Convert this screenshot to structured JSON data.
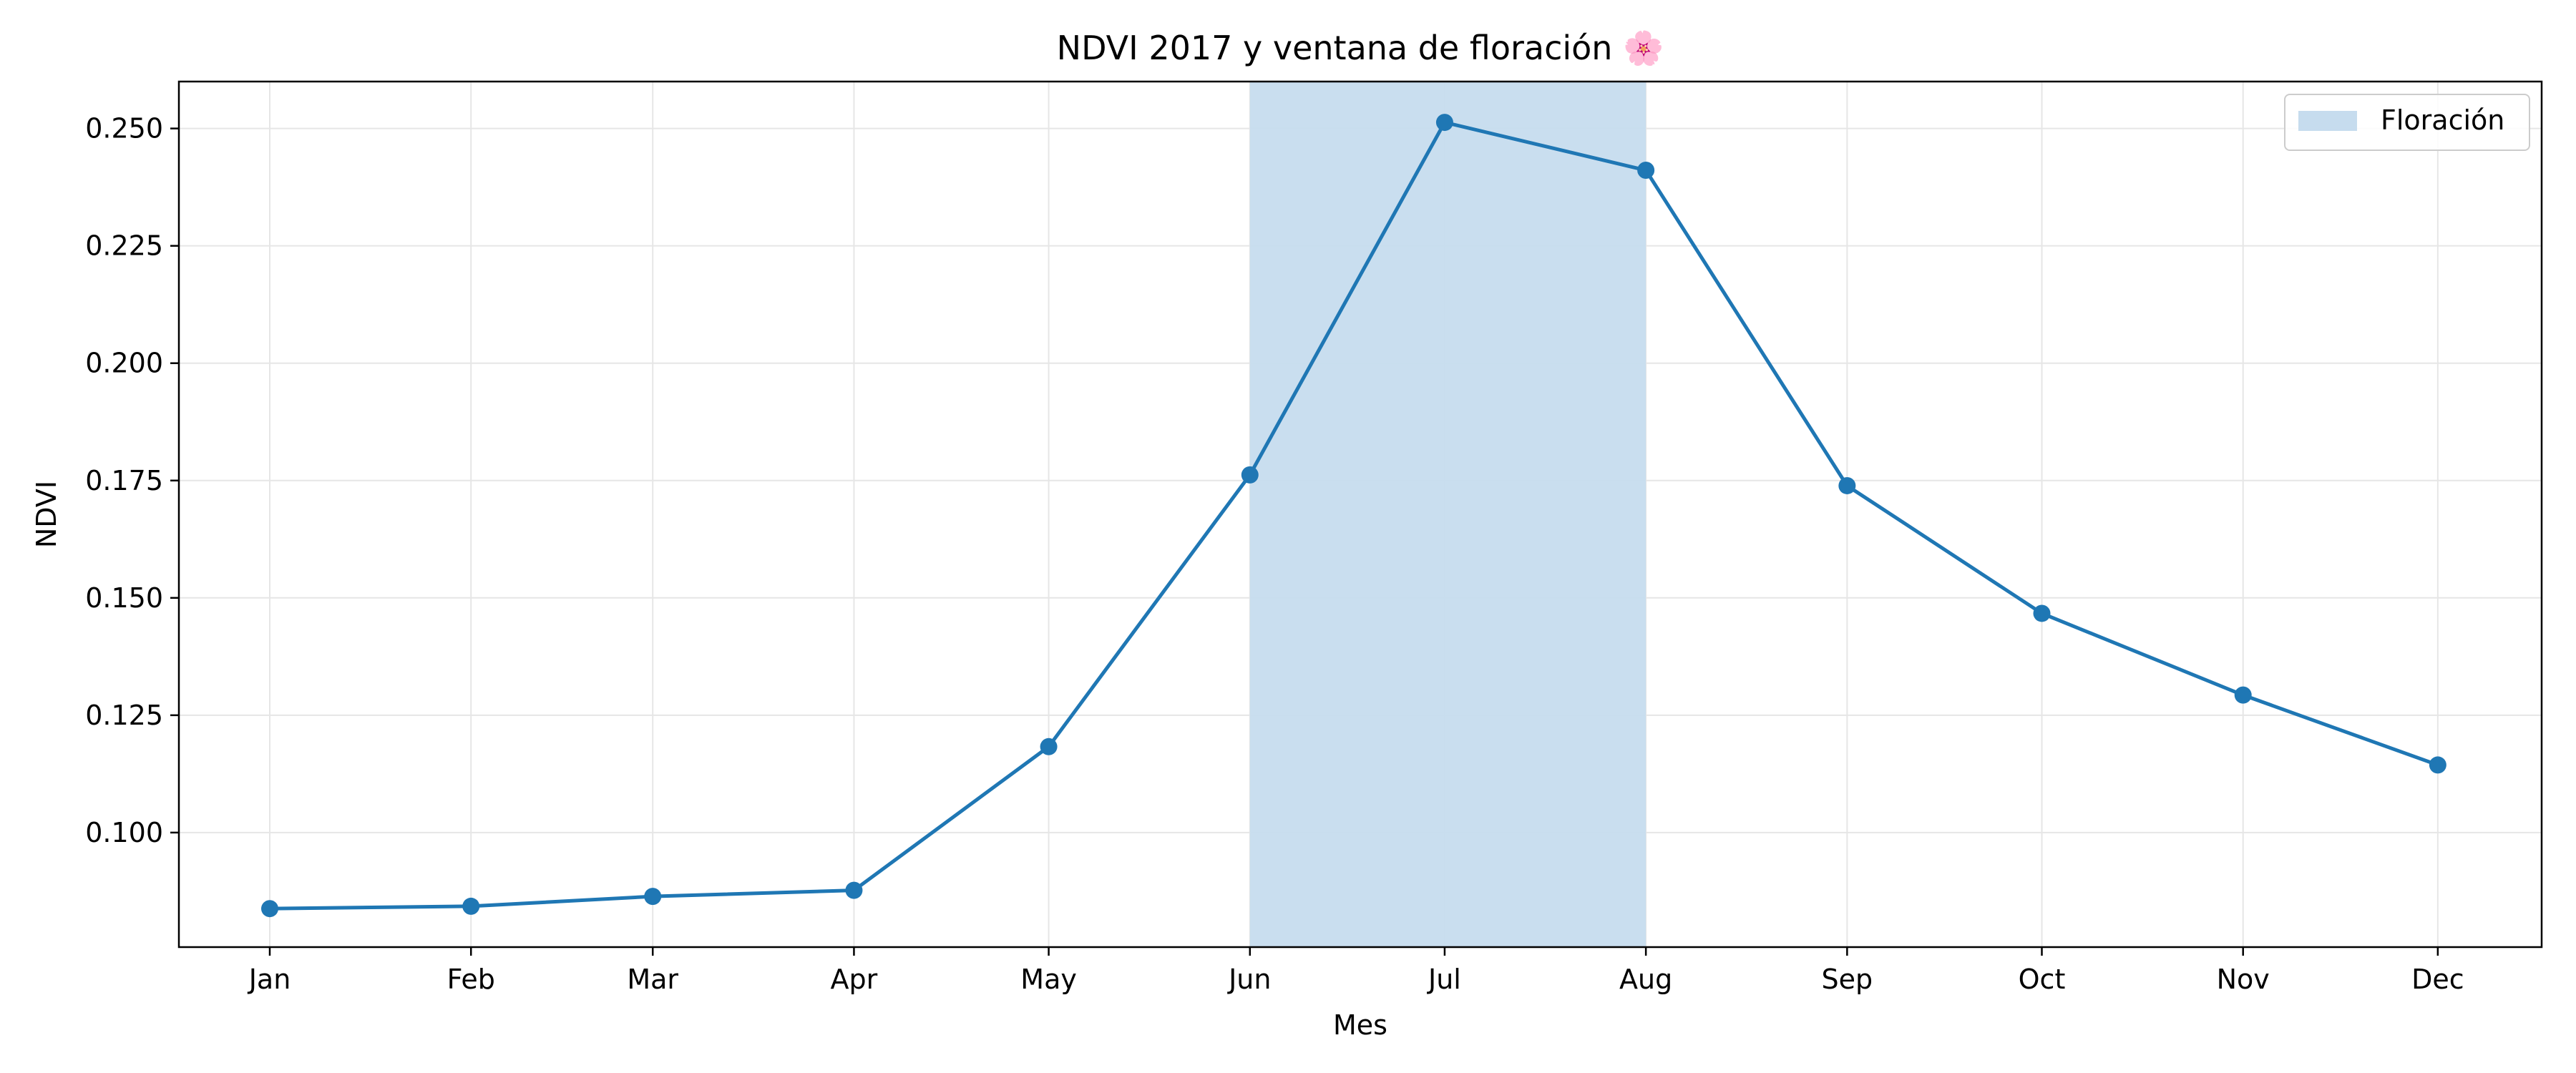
{
  "chart_data": {
    "type": "line",
    "title": "NDVI 2017 y ventana de floración 🌸",
    "xlabel": "Mes",
    "ylabel": "NDVI",
    "categories": [
      "Jan",
      "Feb",
      "Mar",
      "Apr",
      "May",
      "Jun",
      "Jul",
      "Aug",
      "Sep",
      "Oct",
      "Nov",
      "Dec"
    ],
    "x": [
      "2017-01-15",
      "2017-02-15",
      "2017-03-15",
      "2017-04-15",
      "2017-05-15",
      "2017-06-15",
      "2017-07-15",
      "2017-08-15",
      "2017-09-15",
      "2017-10-15",
      "2017-11-15",
      "2017-12-15"
    ],
    "series": [
      {
        "values": [
          0.0838,
          0.0843,
          0.0864,
          0.0877,
          0.1183,
          0.1762,
          0.2513,
          0.2411,
          0.1739,
          0.1467,
          0.1293,
          0.1144
        ]
      }
    ],
    "highlight": {
      "label": "Floración",
      "start": "2017-06-15",
      "end": "2017-08-15"
    },
    "yticks": [
      "0.100",
      "0.125",
      "0.150",
      "0.175",
      "0.200",
      "0.225",
      "0.250"
    ],
    "ylim": [
      0.0756,
      0.26
    ],
    "xlim": [
      "2017-01-01",
      "2017-12-31"
    ],
    "grid": true,
    "legend_position": "top-right",
    "colors": {
      "line": "#1f77b4",
      "highlight": "#c6dcee",
      "grid": "#e6e6e6"
    }
  }
}
